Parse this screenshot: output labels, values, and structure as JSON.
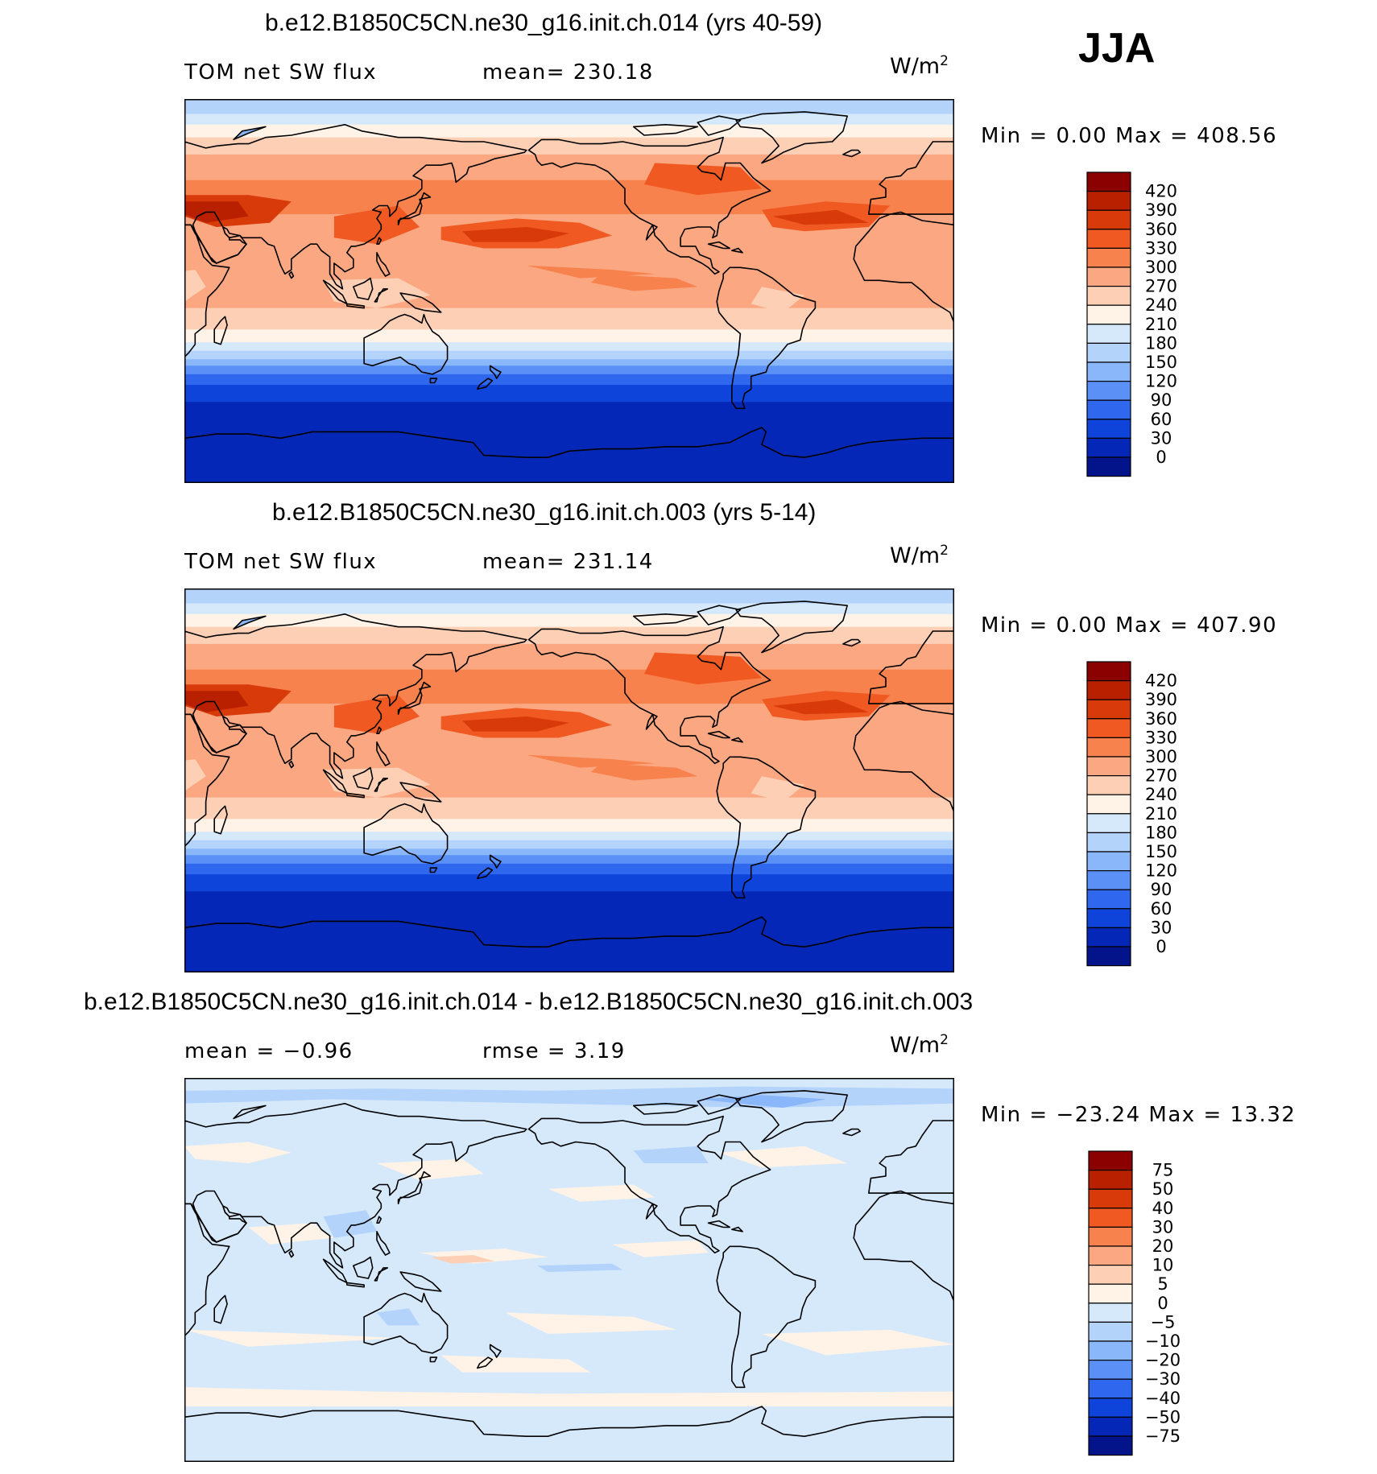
{
  "season_label": "JJA",
  "panels": [
    {
      "title": "b.e12.B1850C5CN.ne30_g16.init.ch.014 (yrs 40-59)",
      "left_stat": "TOM net SW flux",
      "right_stat": "mean= 230.18",
      "units": "W/m",
      "units_exp": "2",
      "minmax": "Min =    0.00 Max  = 408.56",
      "map_type": "absolute"
    },
    {
      "title": "b.e12.B1850C5CN.ne30_g16.init.ch.003 (yrs 5-14)",
      "left_stat": "TOM net SW flux",
      "right_stat": "mean= 231.14",
      "units": "W/m",
      "units_exp": "2",
      "minmax": "Min =    0.00 Max  = 407.90",
      "map_type": "absolute"
    },
    {
      "title": "b.e12.B1850C5CN.ne30_g16.init.ch.014 - b.e12.B1850C5CN.ne30_g16.init.ch.003",
      "left_stat": "mean =   −0.96",
      "right_stat": "rmse =    3.19",
      "units": "W/m",
      "units_exp": "2",
      "minmax": "Min = −23.24 Max =   13.32",
      "map_type": "difference"
    }
  ],
  "colorbar_abs": {
    "labels": [
      "420",
      "390",
      "360",
      "330",
      "300",
      "270",
      "240",
      "210",
      "180",
      "150",
      "120",
      "90",
      "60",
      "30",
      "0"
    ],
    "colors": [
      "#8b0000",
      "#b82000",
      "#d83a0a",
      "#f05a22",
      "#f7824e",
      "#fba882",
      "#fdd0b6",
      "#fff2e6",
      "#d6e9fb",
      "#b3d3fb",
      "#8ab6fa",
      "#5b90f6",
      "#2f68ee",
      "#0f44db",
      "#0527b8",
      "#03138a"
    ]
  },
  "colorbar_diff": {
    "labels": [
      "75",
      "50",
      "40",
      "30",
      "20",
      "10",
      "5",
      "0",
      "−5",
      "−10",
      "−20",
      "−30",
      "−40",
      "−50",
      "−75"
    ],
    "colors": [
      "#8b0000",
      "#b82000",
      "#d83a0a",
      "#f05a22",
      "#f7824e",
      "#fba882",
      "#fdd0b6",
      "#fff2e6",
      "#d6e9fb",
      "#b3d3fb",
      "#8ab6fa",
      "#5b90f6",
      "#2f68ee",
      "#0f44db",
      "#0527b8",
      "#03138a"
    ]
  },
  "map_colors": {
    "c_low1": "#0527b8",
    "c_low2": "#0f44db",
    "c_low3": "#2f68ee",
    "c_low4": "#5b90f6",
    "c_low5": "#8ab6fa",
    "c_low6": "#b3d3fb",
    "c_low7": "#d6e9fb",
    "c_mid": "#fff2e6",
    "c_hi1": "#fdd0b6",
    "c_hi2": "#fba882",
    "c_hi3": "#f7824e",
    "c_hi4": "#f05a22",
    "c_hi5": "#d83a0a",
    "c_hi6": "#b82000",
    "greenland": "#8ab6fa",
    "diff_base": "#d6e9fb",
    "diff_pos": "#fff2e6",
    "diff_pos2": "#fdd0b6",
    "diff_neg": "#b3d3fb",
    "diff_neg2": "#8ab6fa",
    "coast": "#000000"
  }
}
